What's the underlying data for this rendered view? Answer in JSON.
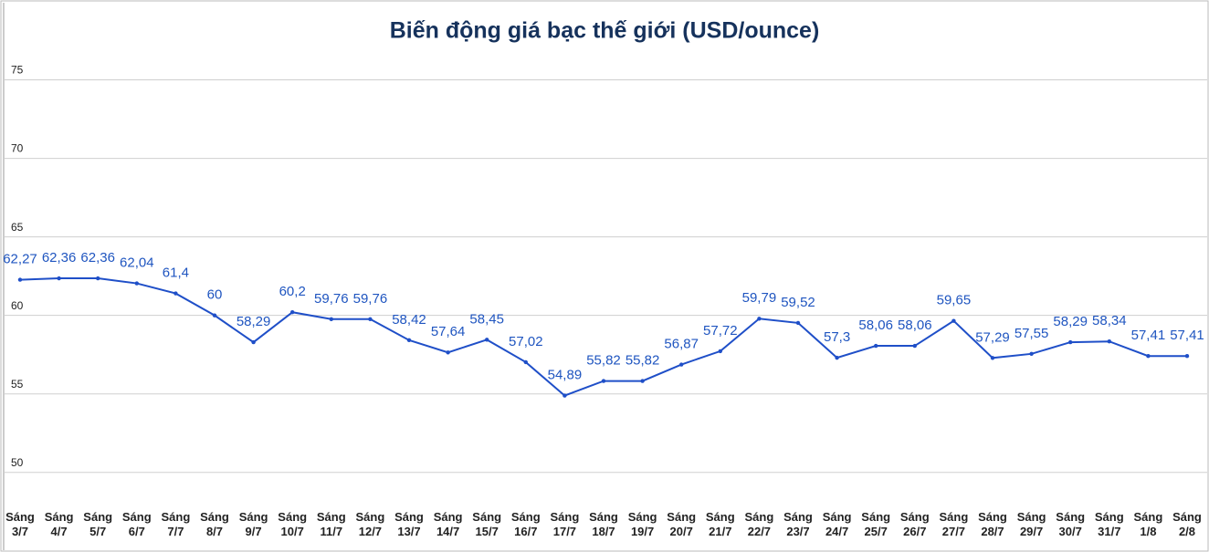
{
  "chart_data": {
    "type": "line",
    "title": "Biến động giá bạc thế giới (USD/ounce)",
    "categories": [
      [
        "Sáng",
        "3/7"
      ],
      [
        "Sáng",
        "4/7"
      ],
      [
        "Sáng",
        "5/7"
      ],
      [
        "Sáng",
        "6/7"
      ],
      [
        "Sáng",
        "7/7"
      ],
      [
        "Sáng",
        "8/7"
      ],
      [
        "Sáng",
        "9/7"
      ],
      [
        "Sáng",
        "10/7"
      ],
      [
        "Sáng",
        "11/7"
      ],
      [
        "Sáng",
        "12/7"
      ],
      [
        "Sáng",
        "13/7"
      ],
      [
        "Sáng",
        "14/7"
      ],
      [
        "Sáng",
        "15/7"
      ],
      [
        "Sáng",
        "16/7"
      ],
      [
        "Sáng",
        "17/7"
      ],
      [
        "Sáng",
        "18/7"
      ],
      [
        "Sáng",
        "19/7"
      ],
      [
        "Sáng",
        "20/7"
      ],
      [
        "Sáng",
        "21/7"
      ],
      [
        "Sáng",
        "22/7"
      ],
      [
        "Sáng",
        "23/7"
      ],
      [
        "Sáng",
        "24/7"
      ],
      [
        "Sáng",
        "25/7"
      ],
      [
        "Sáng",
        "26/7"
      ],
      [
        "Sáng",
        "27/7"
      ],
      [
        "Sáng",
        "28/7"
      ],
      [
        "Sáng",
        "29/7"
      ],
      [
        "Sáng",
        "30/7"
      ],
      [
        "Sáng",
        "31/7"
      ],
      [
        "Sáng",
        "1/8"
      ],
      [
        "Sáng",
        "2/8"
      ]
    ],
    "values": [
      62.27,
      62.36,
      62.36,
      62.04,
      61.4,
      60,
      58.29,
      60.2,
      59.76,
      59.76,
      58.42,
      57.64,
      58.45,
      57.02,
      54.89,
      55.82,
      55.82,
      56.87,
      57.72,
      59.79,
      59.52,
      57.3,
      58.06,
      58.06,
      59.65,
      57.29,
      57.55,
      58.29,
      58.34,
      57.41,
      57.41
    ],
    "value_labels": [
      "62,27",
      "62,36",
      "62,36",
      "62,04",
      "61,4",
      "60",
      "58,29",
      "60,2",
      "59,76",
      "59,76",
      "58,42",
      "57,64",
      "58,45",
      "57,02",
      "54,89",
      "55,82",
      "55,82",
      "56,87",
      "57,72",
      "59,79",
      "59,52",
      "57,3",
      "58,06",
      "58,06",
      "59,65",
      "57,29",
      "57,55",
      "58,29",
      "58,34",
      "57,41",
      "57,41"
    ],
    "color": "#1f4fc8",
    "ylim": [
      48.3,
      76.6
    ],
    "yticks": [
      50,
      55,
      60,
      65,
      70,
      75
    ],
    "grid": true
  }
}
